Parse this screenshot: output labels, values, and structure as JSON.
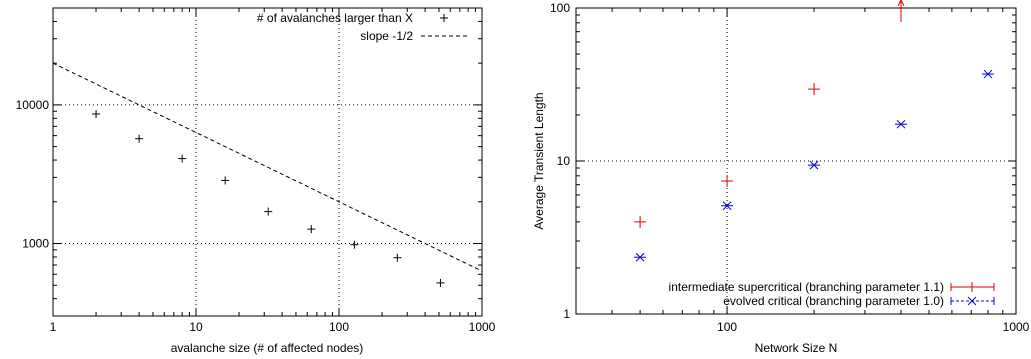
{
  "chart_data": [
    {
      "type": "scatter",
      "title": "",
      "xlabel": "avalanche size (# of affected nodes)",
      "ylabel": "",
      "x_scale": "log",
      "y_scale": "log",
      "xlim": [
        1,
        1000
      ],
      "ylim": [
        300,
        50000
      ],
      "x_ticks": [
        {
          "v": 1,
          "label": "1"
        },
        {
          "v": 10,
          "label": "10"
        },
        {
          "v": 100,
          "label": "100"
        },
        {
          "v": 1000,
          "label": "1000"
        }
      ],
      "y_ticks": [
        {
          "v": 1000,
          "label": "1000"
        },
        {
          "v": 10000,
          "label": "10000"
        }
      ],
      "grid": true,
      "legend_position": "top-right",
      "series": [
        {
          "name": "# of avalanches larger than X",
          "marker": "plus",
          "color": "#000000",
          "x": [
            2,
            4,
            8,
            16,
            32,
            64,
            128,
            256,
            512
          ],
          "y": [
            8600,
            5700,
            4100,
            2850,
            1700,
            1270,
            980,
            790,
            520
          ]
        }
      ],
      "lines": [
        {
          "name": "slope -1/2",
          "style": "dashed",
          "color": "#000000",
          "x": [
            1,
            1000
          ],
          "y": [
            20000,
            632.5
          ]
        }
      ]
    },
    {
      "type": "scatter",
      "title": "",
      "xlabel": "Network Size N",
      "ylabel": "Average Transient Length",
      "x_scale": "log",
      "y_scale": "log",
      "xlim": [
        30,
        1000
      ],
      "ylim": [
        1,
        100
      ],
      "x_ticks": [
        {
          "v": 100,
          "label": "100"
        },
        {
          "v": 1000,
          "label": "1000"
        }
      ],
      "y_ticks": [
        {
          "v": 1,
          "label": "1"
        },
        {
          "v": 10,
          "label": "10"
        },
        {
          "v": 100,
          "label": "100"
        }
      ],
      "grid": true,
      "legend_position": "bottom-right",
      "series": [
        {
          "name": "intermediate supercritical (branching parameter 1.1)",
          "marker": "plus",
          "color": "#e00000",
          "x": [
            50,
            100,
            200,
            400
          ],
          "y": [
            4.0,
            7.4,
            29.5,
            100
          ],
          "off_scale_last": true
        },
        {
          "name": "evolved critical (branching parameter 1.0)",
          "marker": "x-plus",
          "color": "#0000e0",
          "x": [
            50,
            100,
            200,
            400,
            800
          ],
          "y": [
            2.35,
            5.1,
            9.4,
            17.4,
            37
          ]
        }
      ]
    }
  ]
}
